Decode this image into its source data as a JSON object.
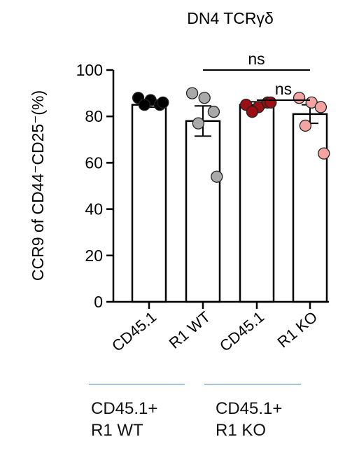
{
  "chart_data": {
    "type": "bar",
    "title": "DN4 TCRγδ",
    "ylabel": "CCR9 of CD44⁻CD25⁻(%)",
    "ylim": [
      0,
      100
    ],
    "yticks": [
      0,
      20,
      40,
      60,
      80,
      100
    ],
    "categories": [
      "CD45.1",
      "R1 WT",
      "CD45.1",
      "R1 KO"
    ],
    "values": [
      85,
      78,
      85,
      81
    ],
    "error": [
      1,
      6.5,
      1.3,
      4
    ],
    "points": [
      [
        88,
        87,
        85,
        85,
        86
      ],
      [
        90,
        88,
        82,
        77,
        54
      ],
      [
        85,
        84,
        86,
        82,
        86
      ],
      [
        88,
        86,
        84,
        76,
        64
      ]
    ],
    "point_colors": [
      "#000000",
      "#a9a9a9",
      "#9b0e12",
      "#f4a3a3"
    ],
    "bar_fill": "#ffffff",
    "comparisons": [
      {
        "from": 1,
        "to": 3,
        "label": "ns",
        "y": 100
      },
      {
        "from": 2,
        "to": 3,
        "label": "ns",
        "y": 87
      }
    ],
    "grid": false
  },
  "groups": [
    {
      "line1": "CD45.1+",
      "line2": "R1 WT"
    },
    {
      "line1": "CD45.1+",
      "line2": "R1 KO"
    }
  ],
  "colors": {
    "group_line": "#4a7fc1"
  }
}
